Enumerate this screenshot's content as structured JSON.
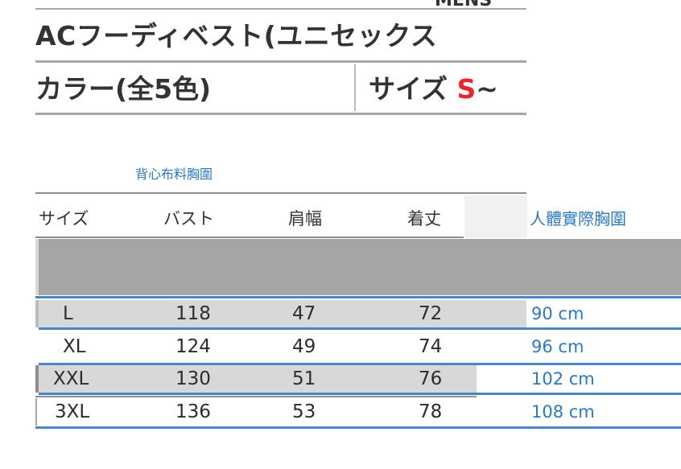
{
  "header": {
    "top_fragment": "MENS",
    "title": "ACフーディベスト(ユニセックス",
    "color_label": "カラー(全5色)",
    "size_label_prefix": "サイズ",
    "size_label_value": "S",
    "size_label_suffix": "~"
  },
  "note_top": "背心布料胸圍",
  "table": {
    "headers": {
      "size": "サイズ",
      "bust": "バスト",
      "shoulder": "肩幅",
      "length": "着丈",
      "real_chest": "人體實際胸圍"
    },
    "rows": [
      {
        "size": "L",
        "bust": "118",
        "shoulder": "47",
        "length": "72",
        "real": "90 cm"
      },
      {
        "size": "XL",
        "bust": "124",
        "shoulder": "49",
        "length": "74",
        "real": "96  cm"
      },
      {
        "size": "XXL",
        "bust": "130",
        "shoulder": "51",
        "length": "76",
        "real": "102 cm"
      },
      {
        "size": "3XL",
        "bust": "136",
        "shoulder": "53",
        "length": "78",
        "real": "108 cm"
      }
    ]
  },
  "colors": {
    "accent_blue": "#2c79bf",
    "size_red": "#e8262d",
    "band_gray": "#a5a5a5",
    "row_shade": "#d8d8d8"
  }
}
